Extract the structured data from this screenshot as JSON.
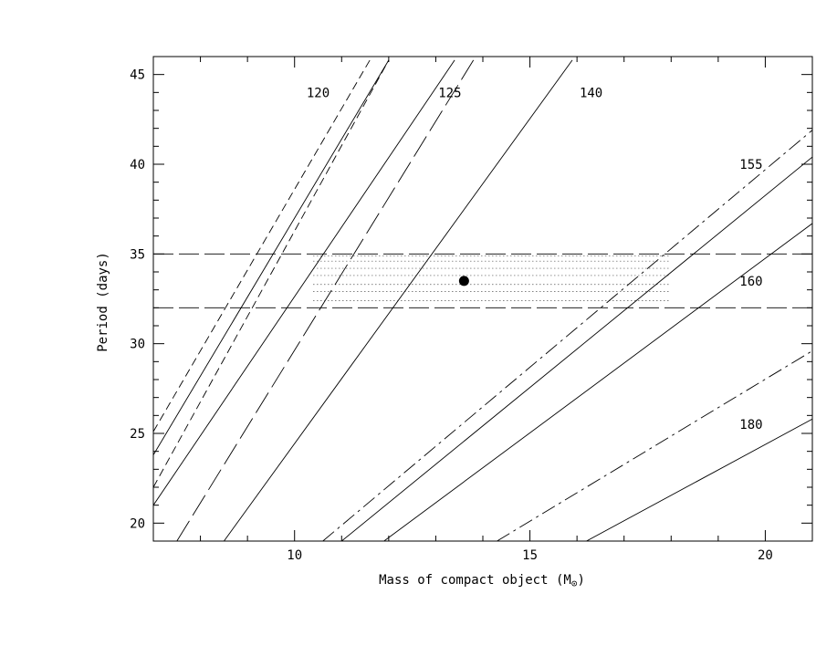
{
  "chart_data": {
    "type": "line",
    "xlabel": "Mass of compact object (M",
    "xlabel_symbol": "⊙",
    "xlabel_close": ")",
    "ylabel": "Period (days)",
    "xlim": [
      7,
      21
    ],
    "ylim": [
      19,
      46
    ],
    "x_ticks": [
      10,
      15,
      20
    ],
    "y_ticks": [
      20,
      25,
      30,
      35,
      40,
      45
    ],
    "x_minor_step": 1,
    "y_minor_step": 1,
    "curve_labels": [
      {
        "text": "120",
        "x": 10.5,
        "y": 44.0
      },
      {
        "text": "125",
        "x": 13.3,
        "y": 44.0
      },
      {
        "text": "140",
        "x": 16.3,
        "y": 44.0
      },
      {
        "text": "155",
        "x": 19.7,
        "y": 40.0
      },
      {
        "text": "160",
        "x": 19.7,
        "y": 33.5
      },
      {
        "text": "180",
        "x": 19.7,
        "y": 25.5
      }
    ],
    "series": [
      {
        "style": "dashed-short",
        "points": [
          [
            7.0,
            25.1
          ],
          [
            11.6,
            45.8
          ]
        ]
      },
      {
        "style": "solid",
        "points": [
          [
            7.0,
            23.8
          ],
          [
            12.0,
            45.8
          ]
        ]
      },
      {
        "style": "dashed-short",
        "points": [
          [
            7.0,
            22.0
          ],
          [
            12.0,
            45.8
          ]
        ]
      },
      {
        "style": "solid",
        "points": [
          [
            7.0,
            21.0
          ],
          [
            13.4,
            45.8
          ]
        ]
      },
      {
        "style": "dashed-long",
        "points": [
          [
            7.5,
            19.0
          ],
          [
            13.8,
            45.8
          ]
        ]
      },
      {
        "style": "solid",
        "points": [
          [
            8.5,
            19.0
          ],
          [
            15.9,
            45.8
          ]
        ]
      },
      {
        "style": "dash-dot",
        "points": [
          [
            10.6,
            19.0
          ],
          [
            21.0,
            41.9
          ]
        ]
      },
      {
        "style": "solid",
        "points": [
          [
            11.0,
            19.0
          ],
          [
            21.0,
            40.4
          ]
        ]
      },
      {
        "style": "solid",
        "points": [
          [
            11.9,
            19.0
          ],
          [
            21.0,
            36.7
          ]
        ]
      },
      {
        "style": "dash-dot",
        "points": [
          [
            14.3,
            19.0
          ],
          [
            21.0,
            29.6
          ]
        ]
      },
      {
        "style": "solid",
        "points": [
          [
            16.2,
            19.0
          ],
          [
            21.0,
            25.8
          ]
        ]
      }
    ],
    "period_bounds": [
      32.0,
      35.0
    ],
    "hatched_region": {
      "x_range": [
        10.4,
        18.0
      ],
      "y_range": [
        32.0,
        35.0
      ],
      "lines": [
        32.4,
        32.9,
        33.3,
        33.8,
        34.2,
        34.6,
        34.9
      ]
    },
    "marker": {
      "x": 13.6,
      "y": 33.5
    },
    "grid": false,
    "legend": "none"
  }
}
